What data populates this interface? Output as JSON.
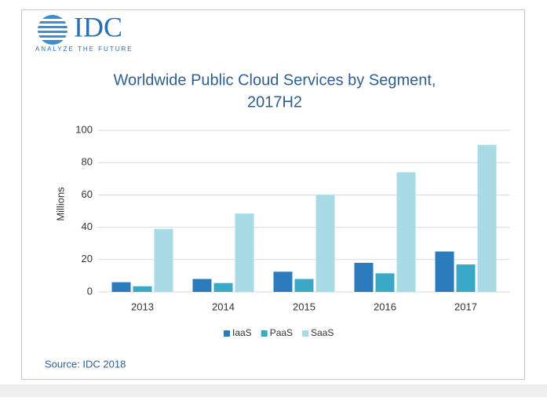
{
  "logo": {
    "name": "IDC",
    "tagline": "ANALYZE THE FUTURE"
  },
  "chart_data": {
    "type": "bar",
    "title": [
      "Worldwide Public Cloud Services by Segment,",
      "2017H2"
    ],
    "y_label": "Millions",
    "source": "Source: IDC 2018",
    "categories": [
      "2013",
      "2014",
      "2015",
      "2016",
      "2017"
    ],
    "series": [
      {
        "name": "IaaS",
        "color": "#2b7bbd",
        "values": [
          6,
          8,
          12.5,
          18,
          25
        ]
      },
      {
        "name": "PaaS",
        "color": "#3aa9c7",
        "values": [
          3.5,
          5.5,
          8,
          11.5,
          17
        ]
      },
      {
        "name": "SaaS",
        "color": "#a8dbe6",
        "values": [
          39,
          48.5,
          60,
          74,
          91
        ]
      }
    ],
    "ylim": [
      0,
      100
    ],
    "yticks": [
      0,
      20,
      40,
      60,
      80,
      100
    ],
    "grid": true,
    "legend": "bottom"
  }
}
